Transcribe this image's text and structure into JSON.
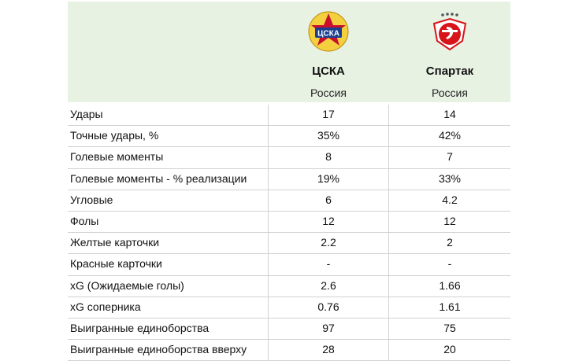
{
  "teams": [
    {
      "name": "ЦСКА",
      "country": "Россия",
      "logo_text": "ЦСКА",
      "logo_color": "#c8102e",
      "logo_accent": "#1b3f8f"
    },
    {
      "name": "Спартак",
      "country": "Россия",
      "logo_color": "#d7141a"
    }
  ],
  "colors": {
    "header_bg": "#e8f2e3",
    "divider": "#d2d2d2"
  },
  "rows": [
    {
      "label": "Удары",
      "v1": "17",
      "v2": "14"
    },
    {
      "label": "Точные удары, %",
      "v1": "35%",
      "v2": "42%"
    },
    {
      "label": "Голевые моменты",
      "v1": "8",
      "v2": "7"
    },
    {
      "label": "Голевые моменты - % реализации",
      "v1": "19%",
      "v2": "33%"
    },
    {
      "label": "Угловые",
      "v1": "6",
      "v2": "4.2"
    },
    {
      "label": "Фолы",
      "v1": "12",
      "v2": "12"
    },
    {
      "label": "Желтые карточки",
      "v1": "2.2",
      "v2": "2"
    },
    {
      "label": "Красные карточки",
      "v1": "-",
      "v2": "-"
    },
    {
      "label": "xG (Ожидаемые голы)",
      "v1": "2.6",
      "v2": "1.66"
    },
    {
      "label": "xG соперника",
      "v1": "0.76",
      "v2": "1.61"
    },
    {
      "label": "Выигранные единоборства",
      "v1": "97",
      "v2": "75"
    },
    {
      "label": "Выигранные единоборства вверху",
      "v1": "28",
      "v2": "20"
    }
  ]
}
